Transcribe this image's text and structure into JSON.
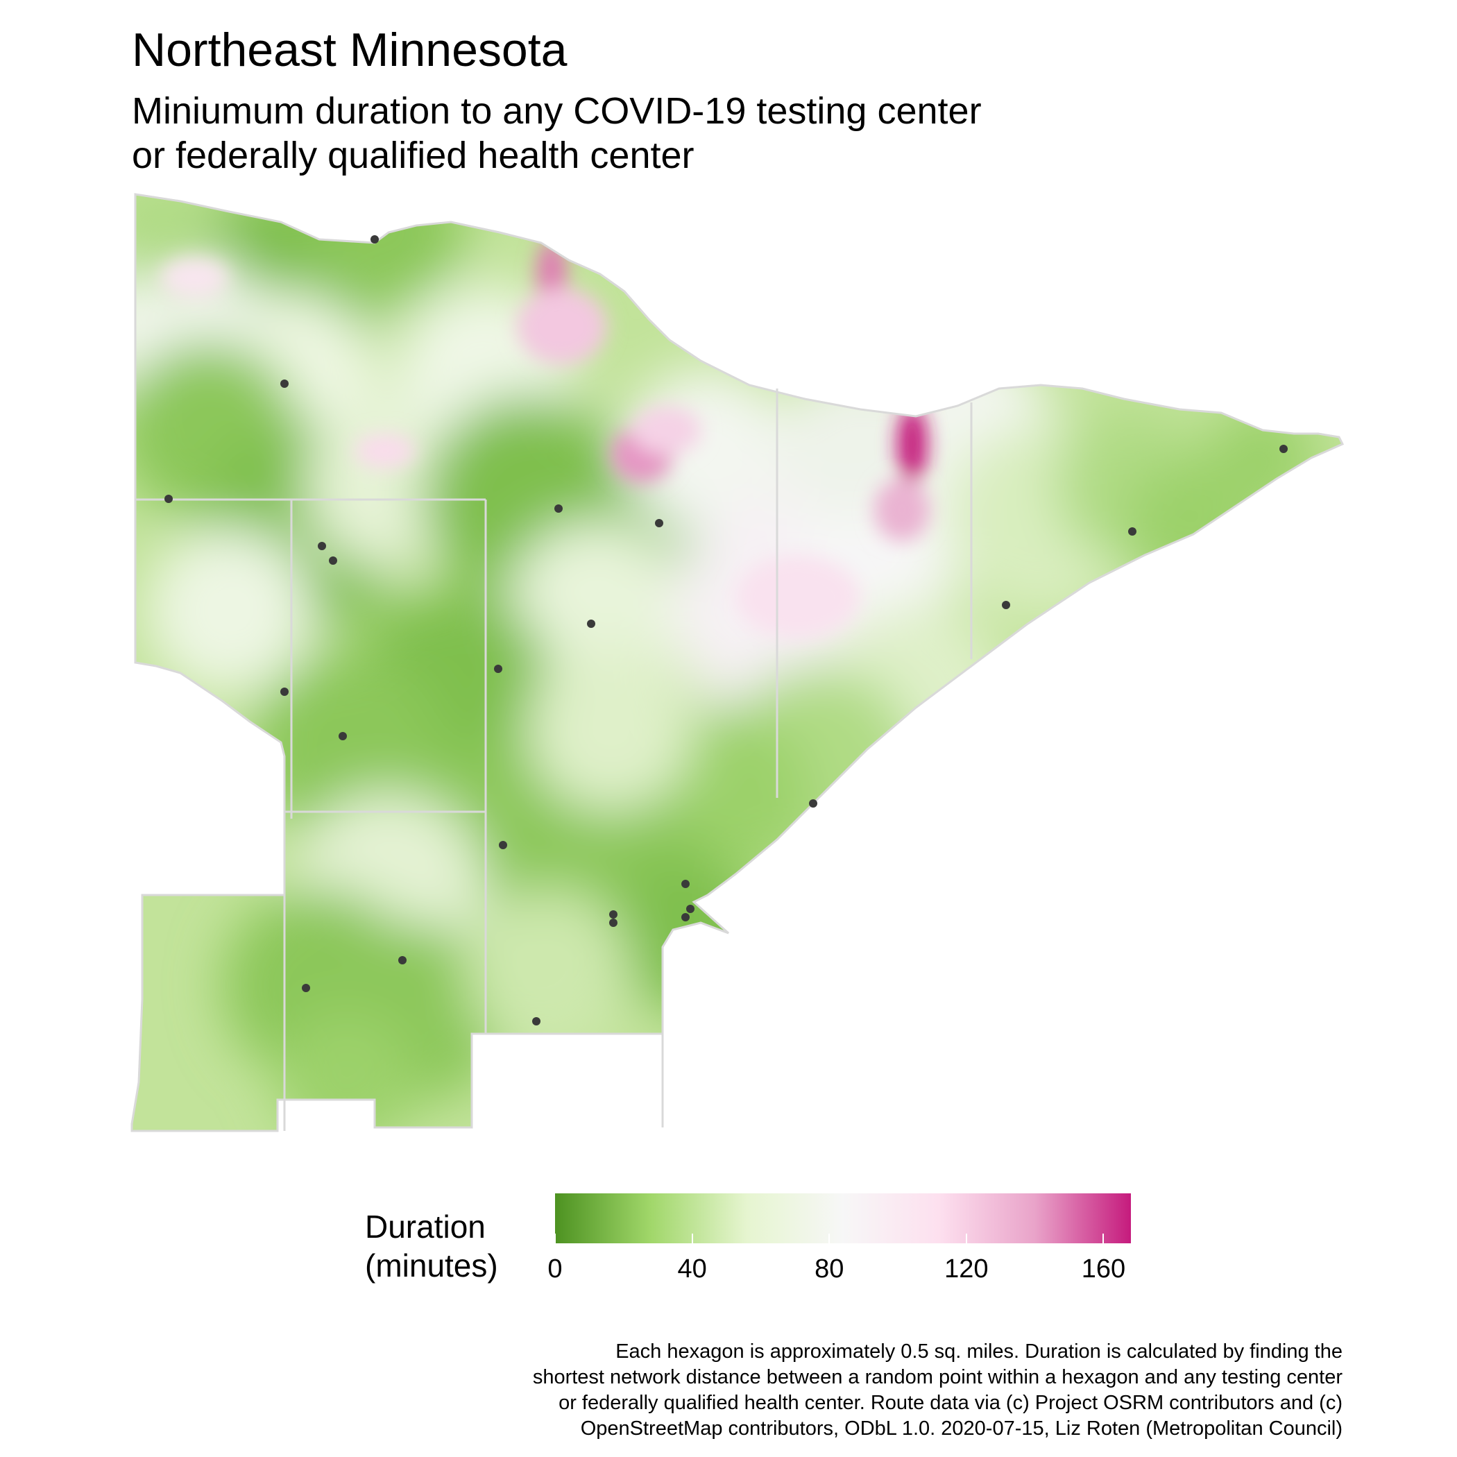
{
  "title": "Northeast Minnesota",
  "subtitle_lines": [
    "Miniumum duration to any COVID-19 testing center",
    "or federally qualified health center"
  ],
  "legend": {
    "title_lines": [
      "Duration",
      "(minutes)"
    ],
    "min": 0,
    "max": 168,
    "ticks": [
      "0",
      "40",
      "80",
      "120",
      "160"
    ],
    "colors": [
      "#4d9221",
      "#a1d76a",
      "#e6f5d0",
      "#f7f7f7",
      "#fde0ef",
      "#e9a3c9",
      "#c51b7d"
    ]
  },
  "caption_lines": [
    "Each hexagon is approximately 0.5 sq. miles. Duration is calculated by finding the",
    "shortest network distance between a random point within a hexagon and any testing center",
    "or federally qualified health center. Route data via (c) Project OSRM contributors and (c)",
    "OpenStreetMap contributors, ODbL 1.0. 2020-07-15, Liz Roten (Metropolitan Council)"
  ],
  "colors": {
    "boundary": "#d9d9d9",
    "testing_site": "#3a3a3a",
    "land_low": "#a1d76a",
    "land_mid": "#e6f5d0",
    "high_duration": "#c51b7d"
  }
}
